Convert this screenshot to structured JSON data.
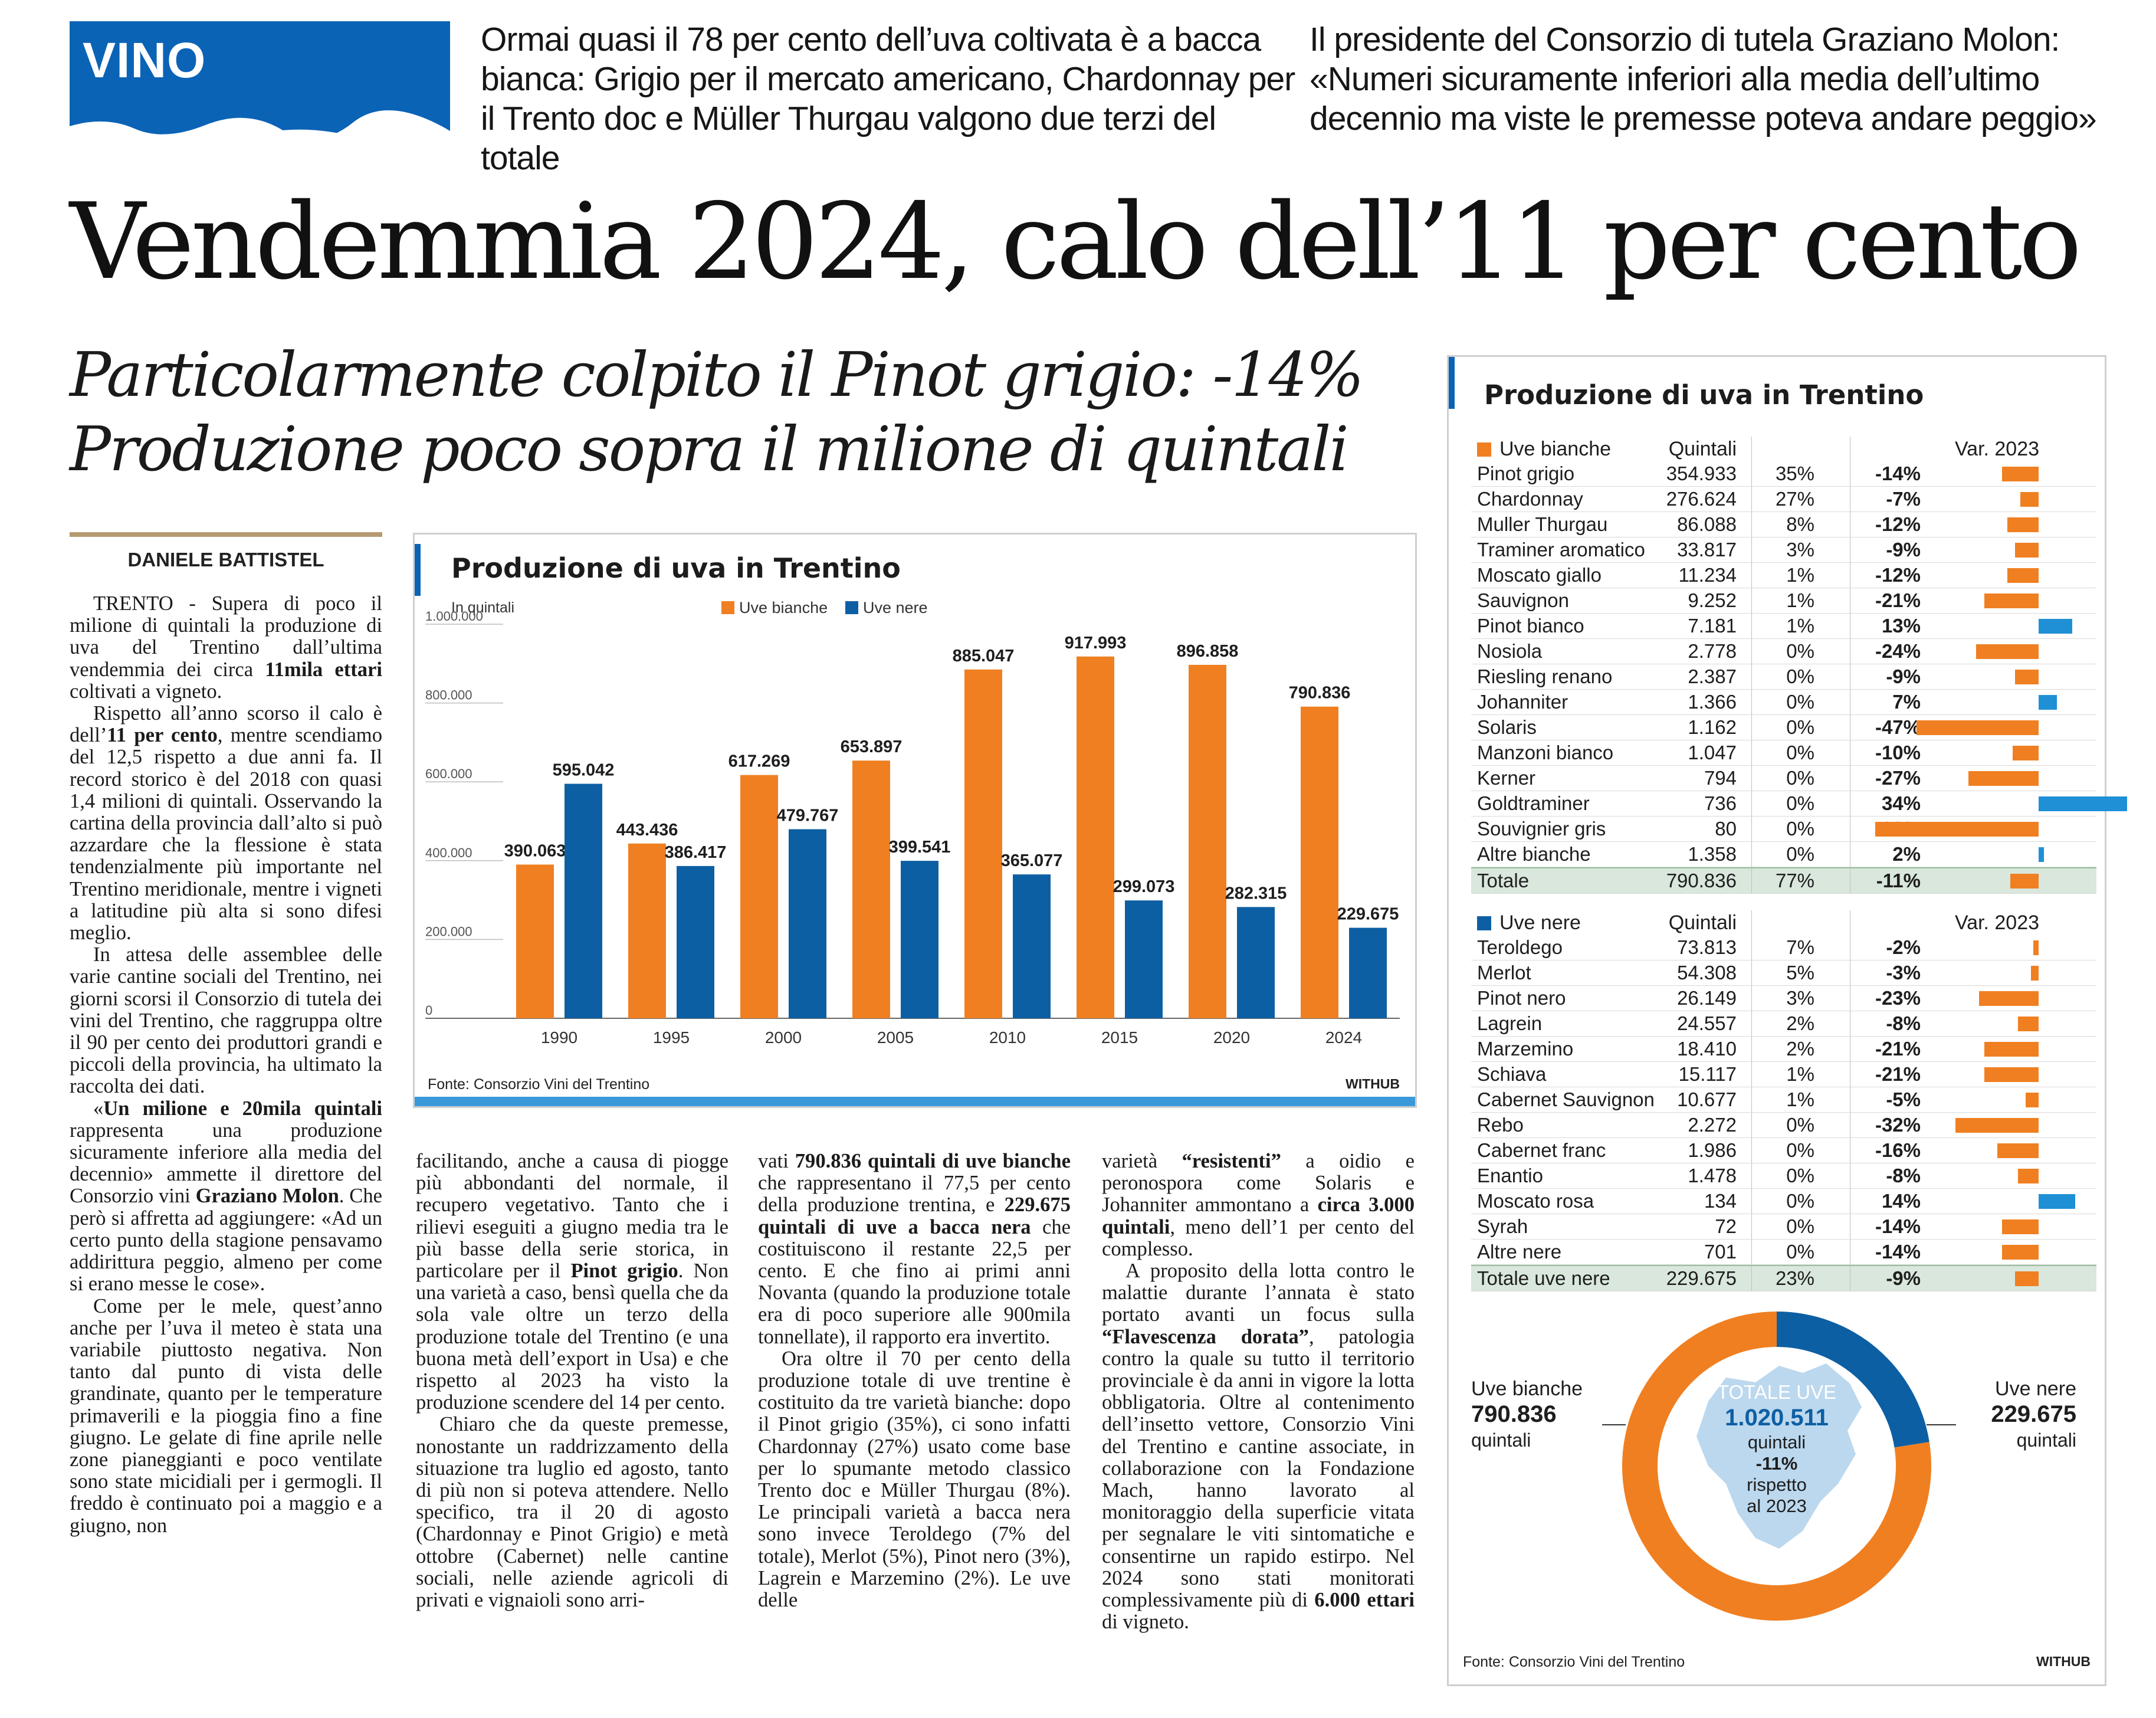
{
  "section_tag": "VINO",
  "kicker_left": "Ormai quasi il 78 per cento dell’uva coltivata è a bacca bianca: Grigio per il mercato americano, Chardonnay per il Trento doc e Müller Thurgau valgono due terzi del totale",
  "kicker_right": "Il presidente del Consorzio di tutela Graziano Molon: «Numeri sicuramente inferiori alla media dell’ultimo decennio ma viste le premesse poteva andare peggio»",
  "headline": "Vendemmia 2024, calo dell’11 per cento",
  "subhead_line1": "Particolarmente colpito il Pinot grigio: -14%",
  "subhead_line2": "Produzione poco sopra il milione di quintali",
  "byline": "DANIELE BATTISTEL",
  "article": {
    "col1": [
      {
        "pre": "TRENTO - Supera di poco il milione di quintali la produzione di uva del Trentino dall’ultima vendemmia dei circa ",
        "bold": "11mila ettari",
        "post": " coltivati a vigneto."
      },
      {
        "pre": "Rispetto all’anno scorso il calo è dell’",
        "bold": "11 per cento",
        "post": ", mentre scendiamo del 12,5 rispetto a due anni fa. Il record storico è del 2018 con quasi 1,4 milioni di quintali. Osservando la cartina della provincia dall’alto si può azzardare che la flessione è stata tendenzialmente più importante nel Trentino meridionale, mentre i vigneti a latitudine più alta si sono difesi meglio."
      },
      {
        "pre": "In attesa delle assemblee delle varie cantine sociali del Trentino, nei giorni scorsi il Consorzio di tutela dei vini del Trentino, che raggruppa oltre il 90 per cento dei produttori grandi e piccoli della provincia, ha ultimato la raccolta dei dati.",
        "bold": "",
        "post": ""
      },
      {
        "pre": "«",
        "bold": "Un milione e 20mila quintali",
        "post": " rappresenta una produzione sicuramente inferiore alla media del decennio» ammette il direttore del Consorzio vini "
      },
      {
        "pre": "",
        "bold": "Graziano Molon",
        "post": ". Che però si affretta ad aggiungere: «Ad un certo punto della stagione pensavamo addirittura peggio, almeno per come si erano messe le cose»."
      },
      {
        "pre": "Come per le mele, quest’anno anche per l’uva il meteo è stata una variabile piuttosto negativa. Non tanto dal punto di vista delle grandinate, quanto per le temperature primaverili e la pioggia fino a fine giugno. Le gelate di fine aprile nelle zone pianeggianti e poco ventilate sono state micidiali per i germogli. Il freddo è continuato poi a maggio e a giugno, non",
        "bold": "",
        "post": ""
      }
    ],
    "col2": [
      {
        "pre": "facilitando, anche a causa di piogge più abbondanti del normale, il recupero vegetativo. Tanto che i rilievi eseguiti a giugno media tra le più basse della serie storica, in particolare per il ",
        "bold": "Pinot grigio",
        "post": ". Non una varietà a caso, bensì quella che da sola vale oltre un terzo della produzione totale del Trentino (e una buona metà dell’export in Usa) e che rispetto al 2023 ha visto la produzione scendere del 14 per cento."
      },
      {
        "pre": "Chiaro che da queste premesse, nonostante un raddrizzamento della situazione tra luglio ed agosto, tanto di più non si poteva attendere. Nello specifico, tra il 20 di agosto (Chardonnay e Pinot Grigio) e metà ottobre (Cabernet) nelle cantine sociali, nelle aziende agricoli di privati e vignaioli sono arri-",
        "bold": "",
        "post": ""
      }
    ],
    "col3": [
      {
        "pre": "vati ",
        "bold": "790.836 quintali di uve bianche",
        "post": " che rappresentano il 77,5 per cento della produzione trentina, e "
      },
      {
        "pre": "",
        "bold": "229.675 quintali di uve a bacca nera",
        "post": " che costituiscono il restante 22,5 per cento. E che fino ai primi anni Novanta (quando la produzione totale era di poco superiore alle 900mila tonnellate), il rapporto era invertito."
      },
      {
        "pre": "Ora oltre il 70 per cento della produzione totale di uve trentine è costituito da tre varietà bianche: dopo il Pinot grigio (35%), ci sono infatti Chardonnay (27%) usato come base per lo spumante metodo classico Trento doc e Müller Thurgau (8%). Le principali varietà a bacca nera sono invece Teroldego (7% del totale), Merlot (5%), Pinot nero (3%), Lagrein e Marzemino (2%). Le uve delle",
        "bold": "",
        "post": ""
      }
    ],
    "col4": [
      {
        "pre": "varietà ",
        "bold": "“resistenti”",
        "post": " a oidio e peronospora come Solaris e Johanniter ammontano a "
      },
      {
        "pre": "",
        "bold": "circa 3.000 quintali",
        "post": ", meno dell’1 per cento del complesso."
      },
      {
        "pre": "A proposito della lotta contro le malattie durante l’annata è stato portato avanti un focus sulla ",
        "bold": "“Flavescenza dorata”",
        "post": ", patologia contro la quale su tutto il territorio provinciale è da anni in vigore la lotta obbligatoria. Oltre al contenimento dell’insetto vettore, Consorzio Vini del Trentino e cantine associate, in collaborazione con la Fondazione Mach, hanno lavorato al monitoraggio della superficie vitata per segnalare le viti sintomatiche e consentirne un rapido estirpo. Nel 2024 sono stati monitorati complessivamente più di "
      },
      {
        "pre": "",
        "bold": "6.000 ettari",
        "post": " di vigneto."
      }
    ]
  },
  "chart_data": [
    {
      "type": "bar",
      "title": "Produzione di uva in Trentino",
      "ylabel": "In quintali",
      "categories": [
        "1990",
        "1995",
        "2000",
        "2005",
        "2010",
        "2015",
        "2020",
        "2024"
      ],
      "series": [
        {
          "name": "Uve bianche",
          "color": "#f07f21",
          "values": [
            390063,
            443436,
            617269,
            653897,
            885047,
            917993,
            896858,
            790836
          ],
          "labels": [
            "390.063",
            "443.436",
            "617.269",
            "653.897",
            "885.047",
            "917.993",
            "896.858",
            "790.836"
          ]
        },
        {
          "name": "Uve nere",
          "color": "#0d5fa3",
          "values": [
            595042,
            386417,
            479767,
            399541,
            365077,
            299073,
            282315,
            229675
          ],
          "labels": [
            "595.042",
            "386.417",
            "479.767",
            "399.541",
            "365.077",
            "299.073",
            "282.315",
            "229.675"
          ]
        }
      ],
      "ylim": [
        0,
        1000000
      ],
      "yticks": [
        0,
        200000,
        400000,
        600000,
        800000,
        1000000
      ],
      "ytick_labels": [
        "0",
        "200.000",
        "400.000",
        "600.000",
        "800.000",
        "1.000.000"
      ],
      "grid": false,
      "legend": "top",
      "source": "Fonte: Consorzio Vini del Trentino",
      "credit": "WITHUB"
    },
    {
      "type": "table",
      "title": "Produzione di uva in Trentino",
      "groups": [
        {
          "name": "Uve bianche",
          "color": "#f07f21",
          "columns": [
            "Quintali",
            "Var. 2023"
          ],
          "rows": [
            {
              "name": "Pinot grigio",
              "q": "354.933",
              "pct": "35%",
              "var": "-14%",
              "v": -14
            },
            {
              "name": "Chardonnay",
              "q": "276.624",
              "pct": "27%",
              "var": "-7%",
              "v": -7
            },
            {
              "name": "Muller Thurgau",
              "q": "86.088",
              "pct": "8%",
              "var": "-12%",
              "v": -12
            },
            {
              "name": "Traminer aromatico",
              "q": "33.817",
              "pct": "3%",
              "var": "-9%",
              "v": -9
            },
            {
              "name": "Moscato giallo",
              "q": "11.234",
              "pct": "1%",
              "var": "-12%",
              "v": -12
            },
            {
              "name": "Sauvignon",
              "q": "9.252",
              "pct": "1%",
              "var": "-21%",
              "v": -21
            },
            {
              "name": "Pinot bianco",
              "q": "7.181",
              "pct": "1%",
              "var": "13%",
              "v": 13
            },
            {
              "name": "Nosiola",
              "q": "2.778",
              "pct": "0%",
              "var": "-24%",
              "v": -24
            },
            {
              "name": "Riesling renano",
              "q": "2.387",
              "pct": "0%",
              "var": "-9%",
              "v": -9
            },
            {
              "name": "Johanniter",
              "q": "1.366",
              "pct": "0%",
              "var": "7%",
              "v": 7
            },
            {
              "name": "Solaris",
              "q": "1.162",
              "pct": "0%",
              "var": "-47%",
              "v": -47
            },
            {
              "name": "Manzoni bianco",
              "q": "1.047",
              "pct": "0%",
              "var": "-10%",
              "v": -10
            },
            {
              "name": "Kerner",
              "q": "794",
              "pct": "0%",
              "var": "-27%",
              "v": -27
            },
            {
              "name": "Goldtraminer",
              "q": "736",
              "pct": "0%",
              "var": "34%",
              "v": 34
            },
            {
              "name": "Souvignier gris",
              "q": "80",
              "pct": "0%",
              "var": "-63%",
              "v": -63
            },
            {
              "name": "Altre bianche",
              "q": "1.358",
              "pct": "0%",
              "var": "2%",
              "v": 2
            }
          ],
          "total": {
            "name": "Totale",
            "q": "790.836",
            "pct": "77%",
            "var": "-11%",
            "v": -11
          }
        },
        {
          "name": "Uve nere",
          "color": "#0d5fa3",
          "columns": [
            "Quintali",
            "Var. 2023"
          ],
          "rows": [
            {
              "name": "Teroldego",
              "q": "73.813",
              "pct": "7%",
              "var": "-2%",
              "v": -2
            },
            {
              "name": "Merlot",
              "q": "54.308",
              "pct": "5%",
              "var": "-3%",
              "v": -3
            },
            {
              "name": "Pinot nero",
              "q": "26.149",
              "pct": "3%",
              "var": "-23%",
              "v": -23
            },
            {
              "name": "Lagrein",
              "q": "24.557",
              "pct": "2%",
              "var": "-8%",
              "v": -8
            },
            {
              "name": "Marzemino",
              "q": "18.410",
              "pct": "2%",
              "var": "-21%",
              "v": -21
            },
            {
              "name": "Schiava",
              "q": "15.117",
              "pct": "1%",
              "var": "-21%",
              "v": -21
            },
            {
              "name": "Cabernet Sauvignon",
              "q": "10.677",
              "pct": "1%",
              "var": "-5%",
              "v": -5
            },
            {
              "name": "Rebo",
              "q": "2.272",
              "pct": "0%",
              "var": "-32%",
              "v": -32
            },
            {
              "name": "Cabernet franc",
              "q": "1.986",
              "pct": "0%",
              "var": "-16%",
              "v": -16
            },
            {
              "name": "Enantio",
              "q": "1.478",
              "pct": "0%",
              "var": "-8%",
              "v": -8
            },
            {
              "name": "Moscato rosa",
              "q": "134",
              "pct": "0%",
              "var": "14%",
              "v": 14
            },
            {
              "name": "Syrah",
              "q": "72",
              "pct": "0%",
              "var": "-14%",
              "v": -14
            },
            {
              "name": "Altre nere",
              "q": "701",
              "pct": "0%",
              "var": "-14%",
              "v": -14
            }
          ],
          "total": {
            "name": "Totale uve nere",
            "q": "229.675",
            "pct": "23%",
            "var": "-9%",
            "v": -9
          }
        }
      ]
    },
    {
      "type": "pie",
      "slices": [
        {
          "name": "Uve bianche",
          "value": 790836,
          "label": "790.836",
          "unit": "quintali",
          "color": "#f07f21"
        },
        {
          "name": "Uve nere",
          "value": 229675,
          "label": "229.675",
          "unit": "quintali",
          "color": "#0d5fa3"
        }
      ],
      "center": {
        "title": "TOTALE UVE",
        "value": "1.020.511",
        "unit": "quintali",
        "change": "-11%",
        "note_line1": "rispetto",
        "note_line2": "al 2023"
      },
      "source": "Fonte: Consorzio Vini del Trentino",
      "credit": "WITHUB"
    }
  ],
  "colors": {
    "accent_blue": "#0b63b6",
    "orange": "#f07f21",
    "dark_blue": "#0d5fa3",
    "light_blue": "#3a9ad9",
    "total_row": "#d9e7dc"
  }
}
